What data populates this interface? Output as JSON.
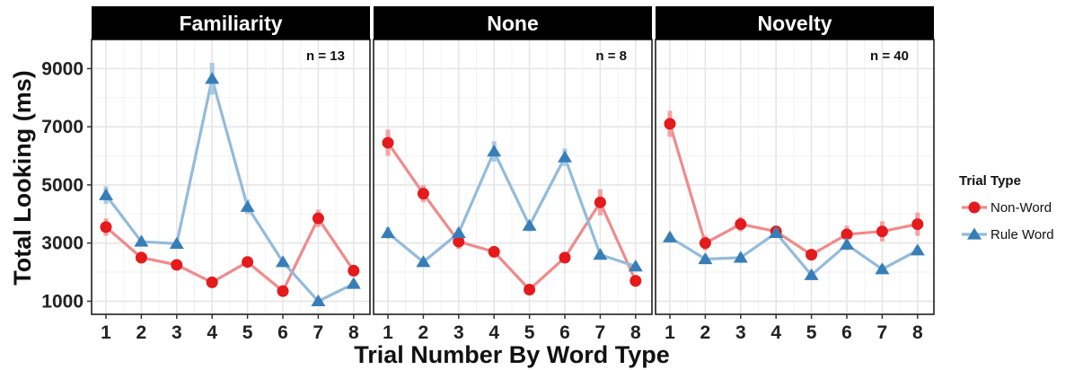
{
  "chart_data": {
    "type": "line",
    "xlabel": "Trial Number By Word Type",
    "ylabel": "Total Looking (ms)",
    "ylim": [
      550,
      10000
    ],
    "y_ticks": [
      1000,
      3000,
      5000,
      7000,
      9000
    ],
    "y_tick_labels": [
      "1000",
      "3000",
      "5000",
      "7000",
      "9000"
    ],
    "x": [
      1,
      2,
      3,
      4,
      5,
      6,
      7,
      8
    ],
    "x_tick_labels": [
      "1",
      "2",
      "3",
      "4",
      "5",
      "6",
      "7",
      "8"
    ],
    "grid": true,
    "legend": {
      "title": "Trial Type",
      "position": "right",
      "entries": [
        "Non-Word",
        "Rule Word"
      ]
    },
    "colors": {
      "Non-Word": "#e41a1c",
      "Rule Word": "#377eb8"
    },
    "panels": [
      {
        "title": "Familiarity",
        "n_label": "n = 13",
        "series": [
          {
            "name": "Non-Word",
            "values": [
              3550,
              2500,
              2250,
              1650,
              2350,
              1350,
              3850,
              2050
            ],
            "error": [
              300,
              200,
              150,
              150,
              150,
              150,
              300,
              200
            ]
          },
          {
            "name": "Rule Word",
            "values": [
              4650,
              3050,
              2980,
              8650,
              4250,
              2350,
              1000,
              1600
            ],
            "error": [
              300,
              150,
              150,
              550,
              250,
              150,
              100,
              150
            ]
          }
        ]
      },
      {
        "title": "None",
        "n_label": "n = 8",
        "series": [
          {
            "name": "Non-Word",
            "values": [
              6450,
              4700,
              3050,
              2700,
              1400,
              2500,
              4400,
              1700
            ],
            "error": [
              450,
              300,
              250,
              150,
              150,
              150,
              450,
              200
            ]
          },
          {
            "name": "Rule Word",
            "values": [
              3350,
              2350,
              3350,
              6150,
              3600,
              5950,
              2600,
              2200
            ],
            "error": [
              200,
              150,
              150,
              350,
              200,
              300,
              150,
              150
            ]
          }
        ]
      },
      {
        "title": "Novelty",
        "n_label": "n = 40",
        "series": [
          {
            "name": "Non-Word",
            "values": [
              7100,
              3000,
              3650,
              3400,
              2600,
              3300,
              3400,
              3650
            ],
            "error": [
              450,
              250,
              250,
              200,
              150,
              300,
              350,
              400
            ]
          },
          {
            "name": "Rule Word",
            "values": [
              3200,
              2450,
              2500,
              3350,
              1900,
              2950,
              2100,
              2750
            ],
            "error": [
              150,
              150,
              150,
              150,
              150,
              200,
              150,
              150
            ]
          }
        ]
      }
    ]
  }
}
